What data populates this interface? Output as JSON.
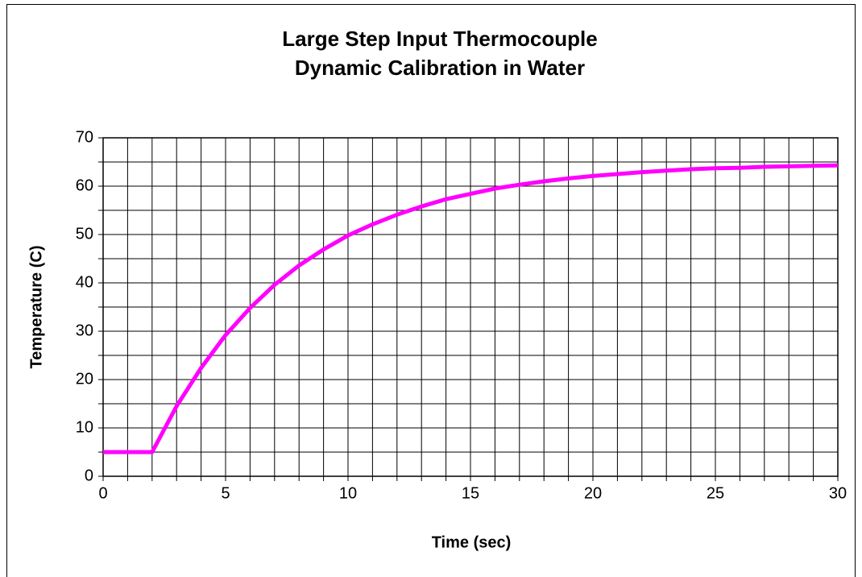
{
  "chart_data": {
    "type": "line",
    "title": [
      "Large Step Input Thermocouple",
      "Dynamic Calibration in Water"
    ],
    "xlabel": "Time (sec)",
    "ylabel": "Temperature (C)",
    "x": [
      0,
      1,
      2,
      3,
      4,
      5,
      6,
      7,
      8,
      9,
      10,
      11,
      12,
      13,
      14,
      15,
      16,
      17,
      18,
      19,
      20,
      21,
      22,
      23,
      24,
      25,
      26,
      27,
      28,
      29,
      30
    ],
    "series": [
      {
        "name": "Temperature",
        "color": "#ff00ff",
        "values": [
          5,
          5,
          5,
          14.5,
          22.4,
          29.2,
          34.8,
          39.6,
          43.6,
          46.9,
          49.8,
          52.1,
          54.1,
          55.8,
          57.3,
          58.4,
          59.5,
          60.3,
          61.0,
          61.6,
          62.1,
          62.5,
          62.9,
          63.2,
          63.5,
          63.7,
          63.8,
          64.0,
          64.1,
          64.2,
          64.3
        ]
      }
    ],
    "xlim": [
      0,
      30
    ],
    "xticks": [
      0,
      5,
      10,
      15,
      20,
      25,
      30
    ],
    "ylim": [
      0,
      70
    ],
    "yticks": [
      0,
      10,
      20,
      30,
      40,
      50,
      60,
      70
    ],
    "xgrid": [
      0,
      1,
      2,
      3,
      4,
      5,
      6,
      7,
      8,
      9,
      10,
      11,
      12,
      13,
      14,
      15,
      16,
      17,
      18,
      19,
      20,
      21,
      22,
      23,
      24,
      25,
      26,
      27,
      28,
      29,
      30
    ],
    "ygrid": [
      0,
      5,
      10,
      15,
      20,
      25,
      30,
      35,
      40,
      45,
      50,
      55,
      60,
      65,
      70
    ],
    "grid": true
  }
}
